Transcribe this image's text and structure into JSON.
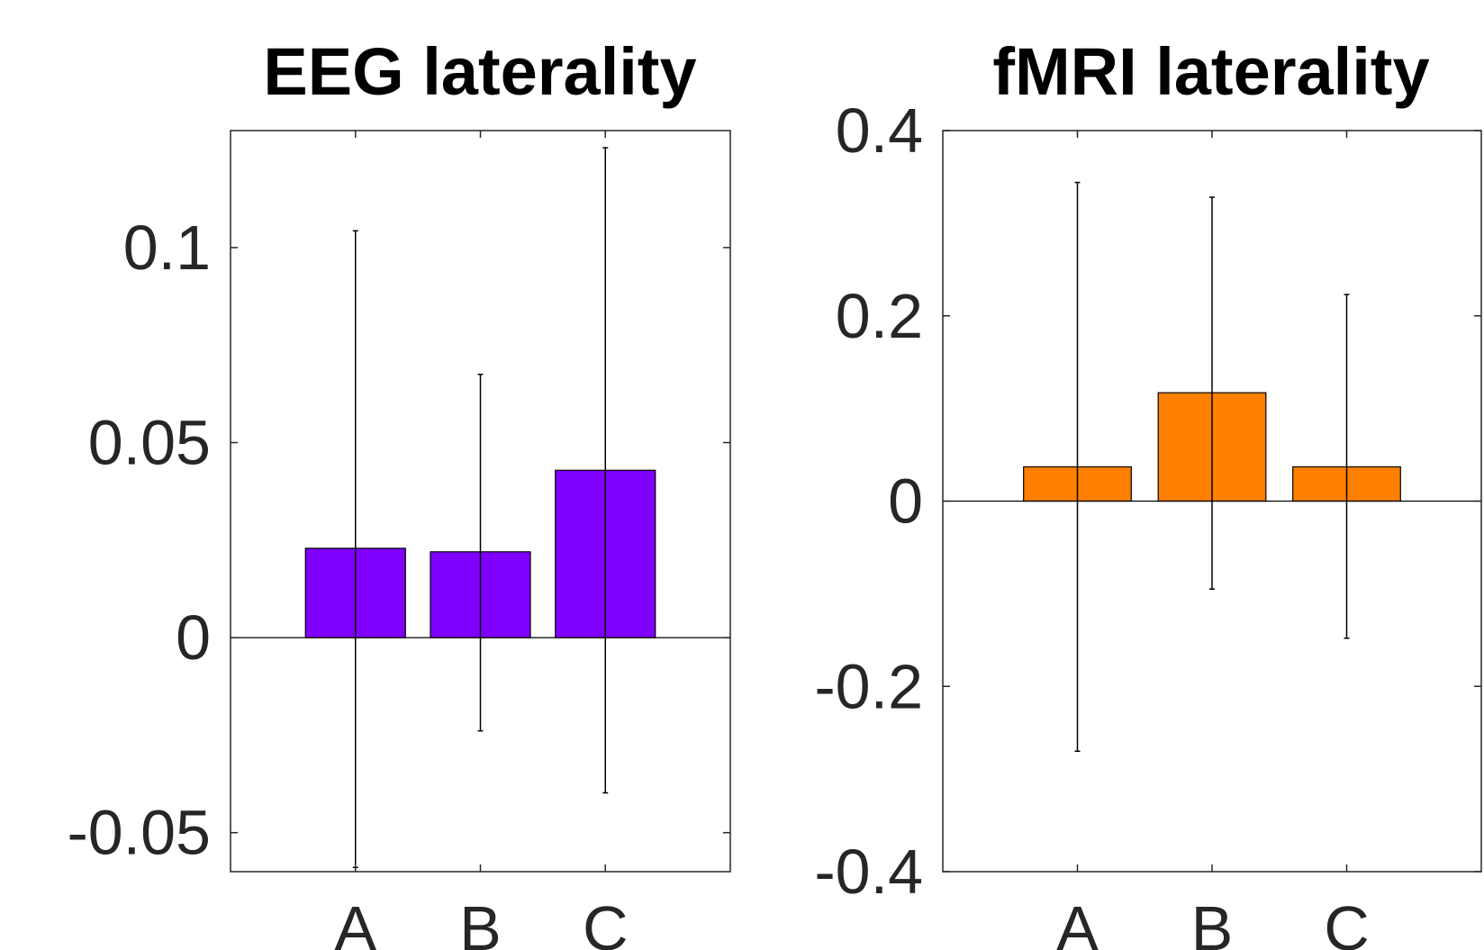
{
  "chart_data": [
    {
      "type": "bar",
      "title": "EEG laterality",
      "xlabel": "",
      "ylabel": "",
      "categories": [
        "A",
        "B",
        "C"
      ],
      "values": [
        0.0229,
        0.022,
        0.0429
      ],
      "error_low": [
        -0.0589,
        -0.0239,
        -0.0398
      ],
      "error_high": [
        0.1043,
        0.0675,
        0.1256
      ],
      "ylim": [
        -0.06,
        0.13
      ],
      "yticks": [
        -0.05,
        0,
        0.05,
        0.1
      ],
      "ytick_labels": [
        "-0.05",
        "0",
        "0.05",
        "0.1"
      ],
      "xlim": [
        0,
        4
      ],
      "bar_color": "#7F00FF",
      "grid": false,
      "legend": "none"
    },
    {
      "type": "bar",
      "title": "fMRI laterality",
      "xlabel": "",
      "ylabel": "",
      "categories": [
        "A",
        "B",
        "C"
      ],
      "values": [
        0.037,
        0.117,
        0.037
      ],
      "error_low": [
        -0.27,
        -0.095,
        -0.148
      ],
      "error_high": [
        0.344,
        0.328,
        0.223
      ],
      "ylim": [
        -0.4,
        0.4
      ],
      "yticks": [
        -0.4,
        -0.2,
        0,
        0.2,
        0.4
      ],
      "ytick_labels": [
        "-0.4",
        "-0.2",
        "0",
        "0.2",
        "0.4"
      ],
      "xlim": [
        0,
        4
      ],
      "bar_color": "#FF7F00",
      "grid": false,
      "legend": "none"
    }
  ]
}
